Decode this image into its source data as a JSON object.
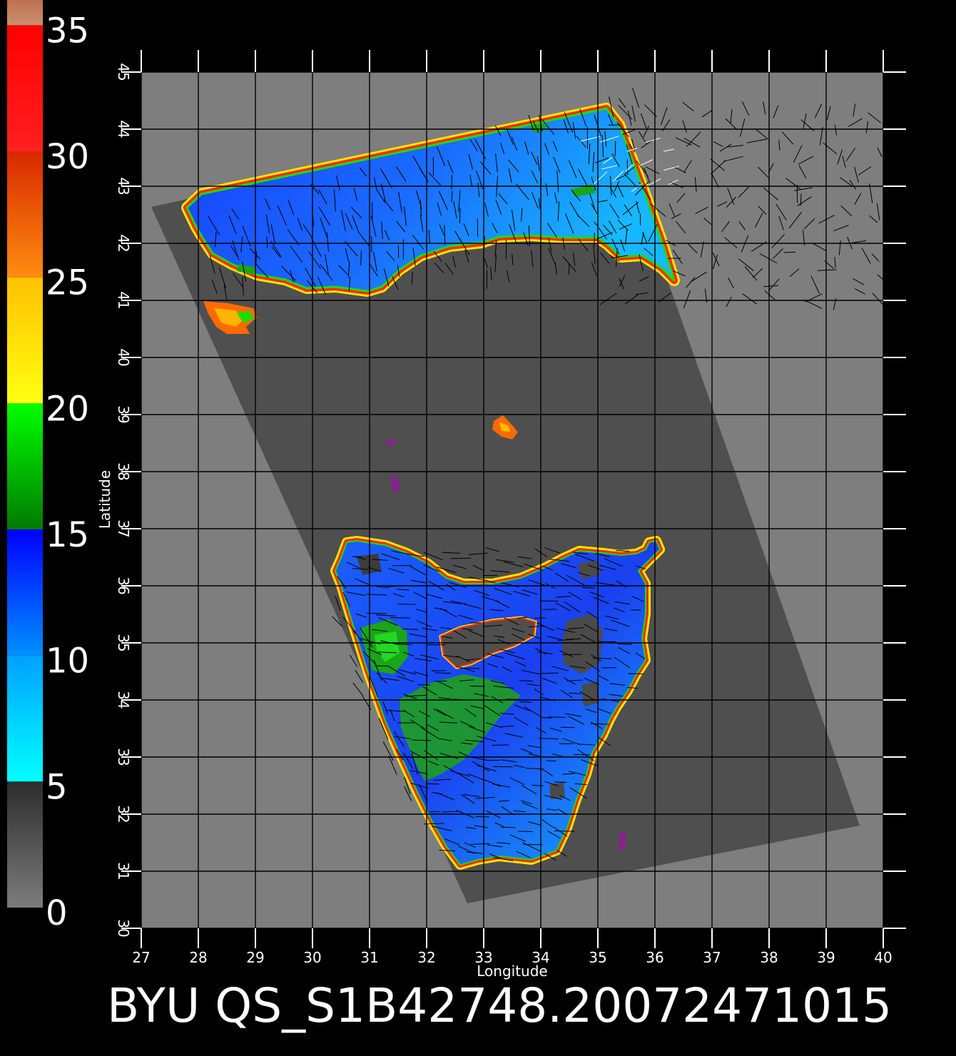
{
  "chart_data": {
    "type": "heatmap",
    "title": "BYU QS_S1B42748.20072471015",
    "xlabel": "Longitude",
    "ylabel": "Latitude",
    "xlim": [
      27,
      40
    ],
    "ylim": [
      30,
      45
    ],
    "x_ticks": [
      27,
      28,
      29,
      30,
      31,
      32,
      33,
      34,
      35,
      36,
      37,
      38,
      39,
      40
    ],
    "y_ticks": [
      30,
      31,
      32,
      33,
      34,
      35,
      36,
      37,
      38,
      39,
      40,
      41,
      42,
      43,
      44,
      45
    ],
    "grid": true,
    "colorbar": {
      "ticks": [
        0,
        5,
        10,
        15,
        20,
        25,
        30,
        35
      ],
      "range": [
        0,
        36
      ],
      "bands": [
        {
          "from": 0,
          "to": 5,
          "colors": [
            "#7c7c7c",
            "#2c2c2c"
          ]
        },
        {
          "from": 5,
          "to": 10,
          "colors": [
            "#00ffff",
            "#00a0ff"
          ]
        },
        {
          "from": 10,
          "to": 15,
          "colors": [
            "#0090ff",
            "#0000ff"
          ]
        },
        {
          "from": 15,
          "to": 20,
          "colors": [
            "#007a00",
            "#00ff00"
          ]
        },
        {
          "from": 20,
          "to": 25,
          "colors": [
            "#ffff10",
            "#ffc000"
          ]
        },
        {
          "from": 25,
          "to": 30,
          "colors": [
            "#ff8c10",
            "#d82800"
          ]
        },
        {
          "from": 30,
          "to": 35,
          "colors": [
            "#ff2020",
            "#ff0000"
          ]
        },
        {
          "from": 35,
          "to": 36,
          "colors": [
            "#c89070",
            "#c07050"
          ]
        }
      ]
    },
    "colors": {
      "background": "#000000",
      "land": "#7e7e7e",
      "swath": "#4f4f4f",
      "sea_low": "#1b48ff",
      "sea_high": "#17b0ff",
      "coast_red": "#ff2a00",
      "coast_yellow": "#ffe600",
      "coast_green": "#1fdc00",
      "green_patch": "#1aa51a",
      "wind_vector": "#000000",
      "wind_vector_alt": "#ffffff"
    }
  }
}
